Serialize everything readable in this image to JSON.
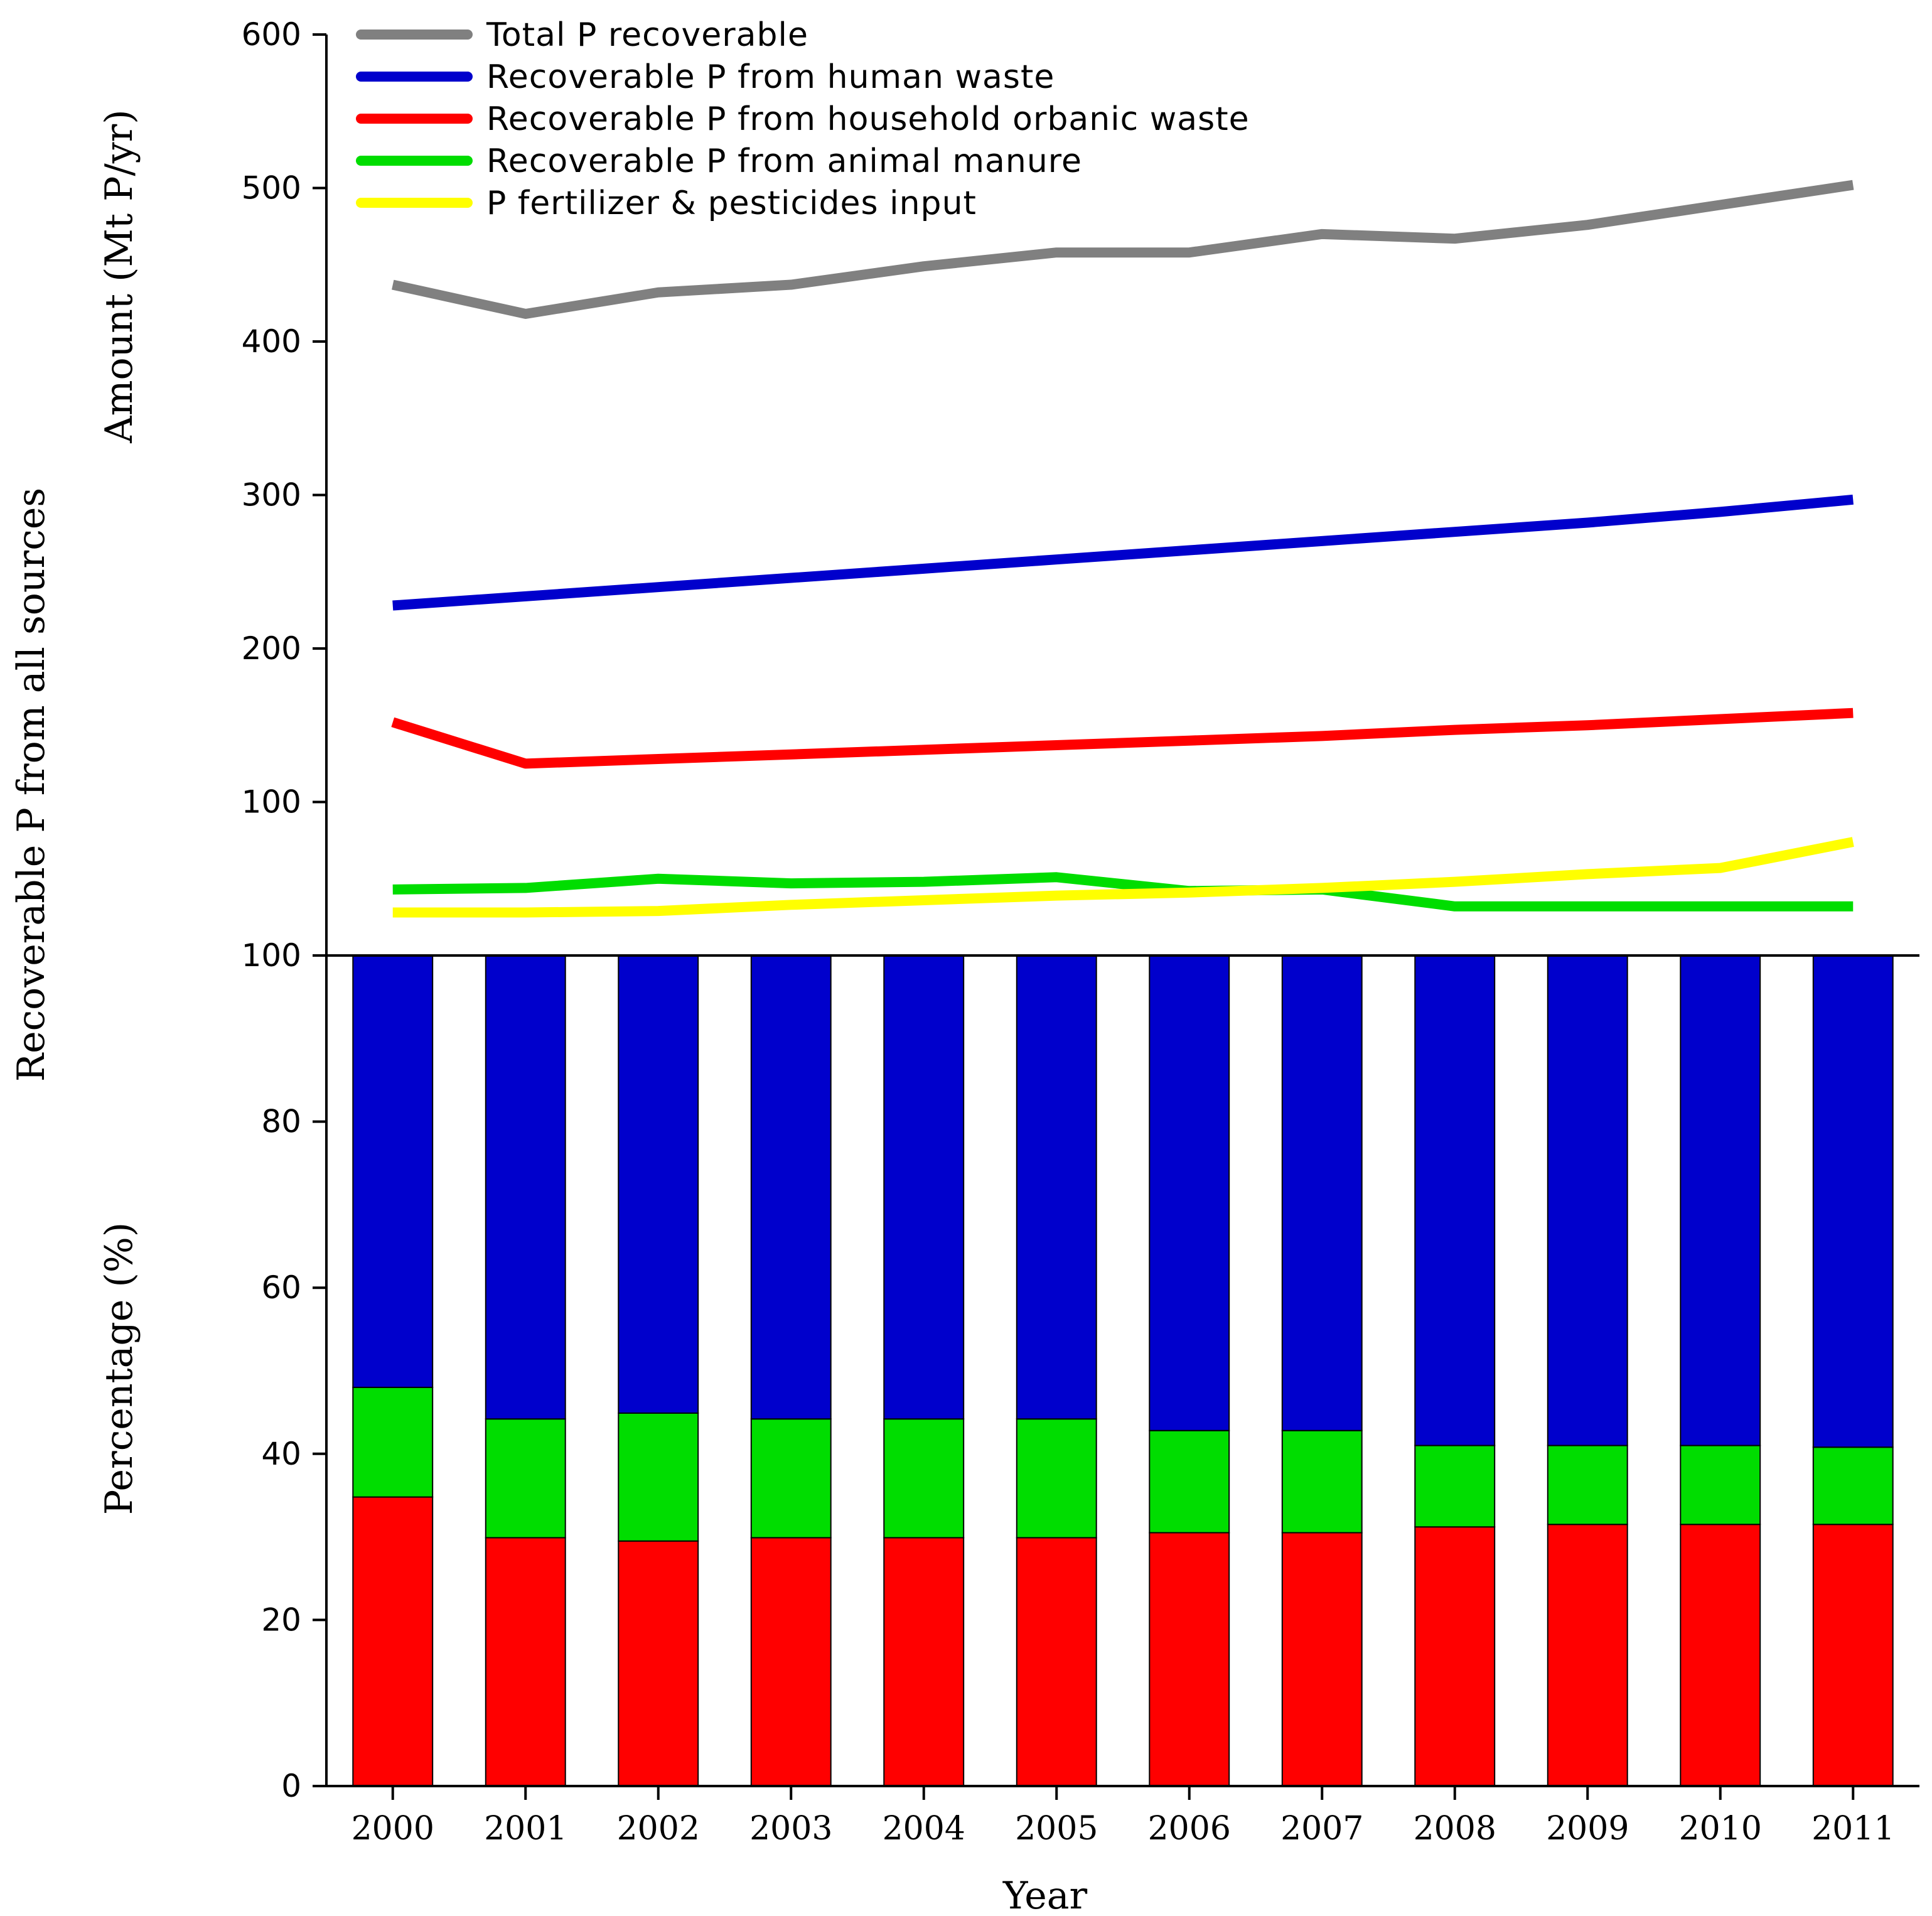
{
  "chart_data": [
    {
      "type": "line",
      "panel": "top",
      "ylabel": "Amount (Mt P/yr)",
      "ylim": [
        0,
        600
      ],
      "yticks": [
        100,
        200,
        300,
        400,
        500,
        600
      ],
      "x": [
        "2000",
        "2001",
        "2002",
        "2003",
        "2004",
        "2005",
        "2006",
        "2007",
        "2008",
        "2009",
        "2010",
        "2011"
      ],
      "legend_position": "top-left",
      "series": [
        {
          "name": "Total P recoverable",
          "color": "#808080",
          "values": [
            437,
            418,
            432,
            437,
            449,
            458,
            458,
            470,
            467,
            476,
            489,
            502
          ]
        },
        {
          "name": "Recoverable P from human waste",
          "color": "#0000cc",
          "values": [
            228,
            234,
            240,
            246,
            252,
            258,
            264,
            270,
            276,
            282,
            289,
            297
          ]
        },
        {
          "name": "Recoverable P from household orbanic waste",
          "color": "#ff0000",
          "values": [
            152,
            125,
            128,
            131,
            134,
            137,
            140,
            143,
            147,
            150,
            154,
            158
          ]
        },
        {
          "name": "Recoverable P from animal manure",
          "color": "#00dd00",
          "values": [
            43,
            44,
            50,
            47,
            48,
            51,
            42,
            43,
            32,
            32,
            32,
            32
          ]
        },
        {
          "name": "P fertilizer & pesticides input",
          "color": "#ffff00",
          "values": [
            28,
            28,
            29,
            33,
            36,
            39,
            41,
            44,
            48,
            53,
            57,
            74
          ]
        }
      ]
    },
    {
      "type": "bar",
      "stacked": true,
      "panel": "bottom",
      "ylabel": "Percentage (%)",
      "xlabel": "Year",
      "ylim": [
        0,
        100
      ],
      "yticks": [
        0,
        20,
        40,
        60,
        80,
        100
      ],
      "categories": [
        "2000",
        "2001",
        "2002",
        "2003",
        "2004",
        "2005",
        "2006",
        "2007",
        "2008",
        "2009",
        "2010",
        "2011"
      ],
      "series": [
        {
          "name": "household organic waste",
          "color": "#ff0000",
          "values": [
            34.8,
            29.9,
            29.5,
            29.9,
            29.9,
            29.9,
            30.5,
            30.5,
            31.2,
            31.5,
            31.5,
            31.5
          ]
        },
        {
          "name": "animal manure",
          "color": "#00dd00",
          "values": [
            13.2,
            14.3,
            15.4,
            14.3,
            14.3,
            14.3,
            12.3,
            12.3,
            9.8,
            9.5,
            9.5,
            9.3
          ]
        },
        {
          "name": "human waste",
          "color": "#0000cc",
          "values": [
            52.0,
            55.8,
            55.1,
            55.8,
            55.8,
            55.8,
            57.2,
            57.2,
            59.0,
            59.0,
            59.0,
            59.2
          ]
        }
      ]
    }
  ],
  "shared_ylabel": "Recoverable P from all sources"
}
